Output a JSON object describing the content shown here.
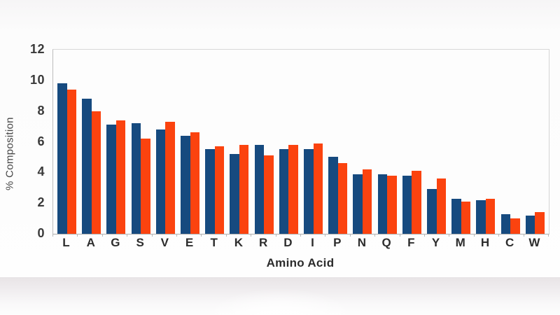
{
  "chart_data": {
    "type": "bar",
    "title": "",
    "xlabel": "Amino Acid",
    "ylabel": "% Composition",
    "ylim": [
      0,
      12
    ],
    "yticks": [
      0,
      2,
      4,
      6,
      8,
      10,
      12
    ],
    "grid": false,
    "legend": "none",
    "categories": [
      "L",
      "A",
      "G",
      "S",
      "V",
      "E",
      "T",
      "K",
      "R",
      "D",
      "I",
      "P",
      "N",
      "Q",
      "F",
      "Y",
      "M",
      "H",
      "C",
      "W"
    ],
    "series": [
      {
        "name": "blue",
        "color": "#164a7f",
        "values": [
          9.8,
          8.8,
          7.1,
          7.2,
          6.8,
          6.4,
          5.5,
          5.2,
          5.8,
          5.5,
          5.5,
          5.0,
          3.9,
          3.9,
          3.8,
          2.9,
          2.3,
          2.2,
          1.3,
          1.2
        ]
      },
      {
        "name": "orange",
        "color": "#fb430f",
        "values": [
          9.4,
          8.0,
          7.4,
          6.2,
          7.3,
          6.6,
          5.7,
          5.8,
          5.1,
          5.8,
          5.9,
          4.6,
          4.2,
          3.8,
          4.1,
          3.6,
          2.1,
          2.3,
          1.0,
          1.4
        ]
      }
    ]
  }
}
